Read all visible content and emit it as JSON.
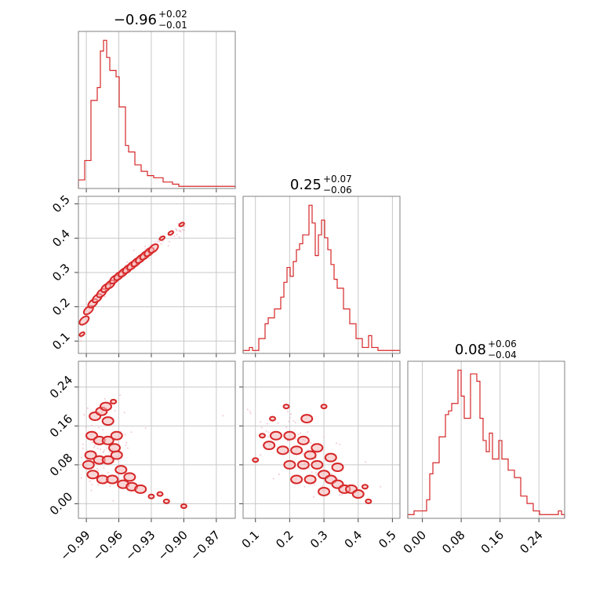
{
  "colors": {
    "accent": "#d62728",
    "fill_light": "#f4b7b7",
    "grid": "#c8c8c8",
    "frame": "#808080"
  },
  "chart_data": {
    "type": "corner",
    "titles": [
      {
        "median": "−0.96",
        "plus": "+0.02",
        "minus": "−0.01"
      },
      {
        "median": "0.25",
        "plus": "+0.07",
        "minus": "−0.06"
      },
      {
        "median": "0.08",
        "plus": "+0.06",
        "minus": "−0.04"
      }
    ],
    "params": [
      {
        "range": [
          -0.9973,
          -0.8525
        ],
        "ticks": [
          -0.99,
          -0.96,
          -0.93,
          -0.9,
          -0.87
        ],
        "tick_labels": [
          "−0.99",
          "−0.96",
          "−0.93",
          "−0.90",
          "−0.87"
        ]
      },
      {
        "range": [
          0.064,
          0.522
        ],
        "ticks": [
          0.1,
          0.2,
          0.3,
          0.4,
          0.5
        ],
        "tick_labels": [
          "0.1",
          "0.2",
          "0.3",
          "0.4",
          "0.5"
        ]
      },
      {
        "range": [
          -0.03,
          0.293
        ],
        "ticks": [
          0.0,
          0.08,
          0.16,
          0.24
        ],
        "tick_labels": [
          "0.00",
          "0.08",
          "0.16",
          "0.24"
        ]
      }
    ],
    "histograms": [
      {
        "counts": [
          4,
          4,
          13,
          13,
          41,
          41,
          47,
          64,
          69,
          61,
          55,
          55,
          52,
          38,
          38,
          20,
          17,
          17,
          11,
          11,
          8,
          8,
          6,
          6,
          5,
          5,
          5,
          3,
          3,
          3,
          2,
          2,
          1,
          1,
          1,
          1,
          1,
          1,
          1,
          1,
          1,
          1,
          1,
          1,
          1,
          1,
          1,
          1,
          1,
          1
        ],
        "counts_note": ""
      },
      {
        "counts": [
          1,
          1,
          2,
          1,
          1,
          5,
          5,
          10,
          12,
          12,
          15,
          15,
          19,
          24,
          29,
          26,
          31,
          35,
          37,
          40,
          40,
          50,
          44,
          33,
          40,
          45,
          39,
          35,
          30,
          25,
          22,
          22,
          15,
          15,
          10,
          10,
          5,
          5,
          2,
          2,
          6,
          2,
          2,
          1,
          1,
          1,
          1,
          1,
          1,
          1
        ]
      },
      {
        "counts": [
          1,
          1,
          2,
          2,
          2,
          2,
          5,
          12,
          15,
          15,
          22,
          22,
          28,
          29,
          31,
          31,
          40,
          33,
          27,
          27,
          39,
          39,
          37,
          27,
          21,
          18,
          23,
          16,
          16,
          21,
          16,
          16,
          13,
          13,
          11,
          11,
          6,
          6,
          4,
          4,
          2,
          2,
          1,
          1,
          1,
          1,
          1,
          1,
          2,
          1
        ]
      }
    ],
    "pairs": [
      {
        "x": 0,
        "y": 1,
        "shape": "narrow curved band from (-0.99, 0.12) to (-0.94, 0.36) extending to (-0.90, 0.44)"
      },
      {
        "x": 0,
        "y": 2,
        "shape": "dense blob near x -0.98..-0.96, y 0.02..0.20 with tail to (-0.90, -0.005)"
      },
      {
        "x": 1,
        "y": 2,
        "shape": "anti-correlated cloud from (0.12, 0.14) to (0.43, 0.00)"
      }
    ]
  }
}
